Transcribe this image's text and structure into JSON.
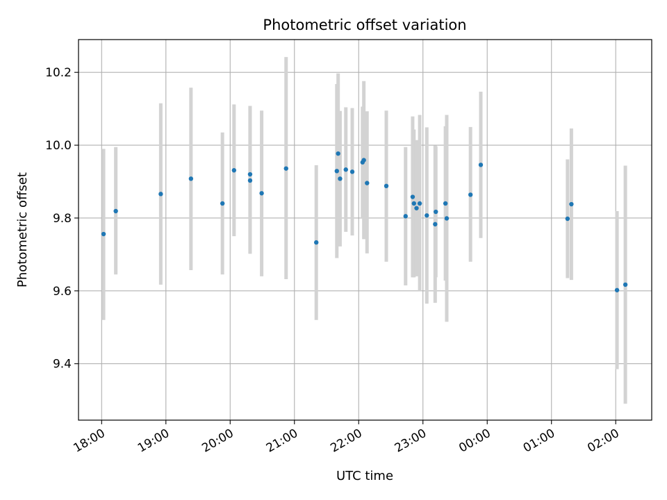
{
  "chart_data": {
    "type": "scatter",
    "title": "Photometric offset variation",
    "xlabel": "UTC time",
    "ylabel": "Photometric offset",
    "x_unit": "UTC hours (values past 24 wrap to next day)",
    "xlim": [
      17.64,
      26.56
    ],
    "ylim": [
      9.245,
      10.29
    ],
    "grid": true,
    "x_ticks": [
      {
        "x": 18,
        "label": "18:00"
      },
      {
        "x": 19,
        "label": "19:00"
      },
      {
        "x": 20,
        "label": "20:00"
      },
      {
        "x": 21,
        "label": "21:00"
      },
      {
        "x": 22,
        "label": "22:00"
      },
      {
        "x": 23,
        "label": "23:00"
      },
      {
        "x": 24,
        "label": "00:00"
      },
      {
        "x": 25,
        "label": "01:00"
      },
      {
        "x": 26,
        "label": "02:00"
      }
    ],
    "y_ticks": [
      {
        "y": 9.4,
        "label": "9.4"
      },
      {
        "y": 9.6,
        "label": "9.6"
      },
      {
        "y": 9.8,
        "label": "9.8"
      },
      {
        "y": 10.0,
        "label": "10.0"
      },
      {
        "y": 10.2,
        "label": "10.2"
      }
    ],
    "colors": {
      "point": "#1f77b4",
      "errorbar": "#d3d3d3",
      "grid": "#b0b0b0"
    },
    "points": [
      {
        "x": 18.03,
        "y": 9.756,
        "low": 9.52,
        "high": 9.99
      },
      {
        "x": 18.22,
        "y": 9.819,
        "low": 9.645,
        "high": 9.995
      },
      {
        "x": 18.92,
        "y": 9.866,
        "low": 9.617,
        "high": 10.115
      },
      {
        "x": 19.39,
        "y": 9.908,
        "low": 9.657,
        "high": 10.158
      },
      {
        "x": 19.88,
        "y": 9.84,
        "low": 9.645,
        "high": 10.035
      },
      {
        "x": 20.06,
        "y": 9.931,
        "low": 9.75,
        "high": 10.112
      },
      {
        "x": 20.31,
        "y": 9.92,
        "low": 9.702,
        "high": 10.108
      },
      {
        "x": 20.31,
        "y": 9.903,
        "low": 9.702,
        "high": 10.108
      },
      {
        "x": 20.49,
        "y": 9.868,
        "low": 9.64,
        "high": 10.095
      },
      {
        "x": 20.87,
        "y": 9.936,
        "low": 9.632,
        "high": 10.242
      },
      {
        "x": 21.34,
        "y": 9.733,
        "low": 9.52,
        "high": 9.945
      },
      {
        "x": 21.66,
        "y": 9.929,
        "low": 9.69,
        "high": 10.168
      },
      {
        "x": 21.68,
        "y": 9.977,
        "low": 9.757,
        "high": 10.197
      },
      {
        "x": 21.71,
        "y": 9.908,
        "low": 9.722,
        "high": 10.094
      },
      {
        "x": 21.8,
        "y": 9.933,
        "low": 9.762,
        "high": 10.104
      },
      {
        "x": 21.9,
        "y": 9.927,
        "low": 9.752,
        "high": 10.102
      },
      {
        "x": 22.06,
        "y": 9.953,
        "low": 9.8,
        "high": 10.106
      },
      {
        "x": 22.08,
        "y": 9.959,
        "low": 9.742,
        "high": 10.176
      },
      {
        "x": 22.13,
        "y": 9.896,
        "low": 9.703,
        "high": 10.093
      },
      {
        "x": 22.43,
        "y": 9.888,
        "low": 9.68,
        "high": 10.095
      },
      {
        "x": 22.73,
        "y": 9.805,
        "low": 9.615,
        "high": 9.995
      },
      {
        "x": 22.84,
        "y": 9.858,
        "low": 9.637,
        "high": 10.079
      },
      {
        "x": 22.86,
        "y": 9.84,
        "low": 9.637,
        "high": 10.043
      },
      {
        "x": 22.9,
        "y": 9.827,
        "low": 9.64,
        "high": 10.014
      },
      {
        "x": 22.95,
        "y": 9.84,
        "low": 9.6,
        "high": 10.083
      },
      {
        "x": 23.06,
        "y": 9.807,
        "low": 9.565,
        "high": 10.049
      },
      {
        "x": 23.19,
        "y": 9.783,
        "low": 9.567,
        "high": 9.999
      },
      {
        "x": 23.2,
        "y": 9.817,
        "low": 9.637,
        "high": 9.997
      },
      {
        "x": 23.35,
        "y": 9.84,
        "low": 9.628,
        "high": 10.052
      },
      {
        "x": 23.37,
        "y": 9.799,
        "low": 9.515,
        "high": 10.083
      },
      {
        "x": 23.74,
        "y": 9.864,
        "low": 9.68,
        "high": 10.05
      },
      {
        "x": 23.9,
        "y": 9.946,
        "low": 9.745,
        "high": 10.147
      },
      {
        "x": 25.25,
        "y": 9.798,
        "low": 9.635,
        "high": 9.961
      },
      {
        "x": 25.31,
        "y": 9.838,
        "low": 9.63,
        "high": 10.046
      },
      {
        "x": 26.02,
        "y": 9.602,
        "low": 9.385,
        "high": 9.819
      },
      {
        "x": 26.15,
        "y": 9.617,
        "low": 9.29,
        "high": 9.944
      }
    ]
  }
}
